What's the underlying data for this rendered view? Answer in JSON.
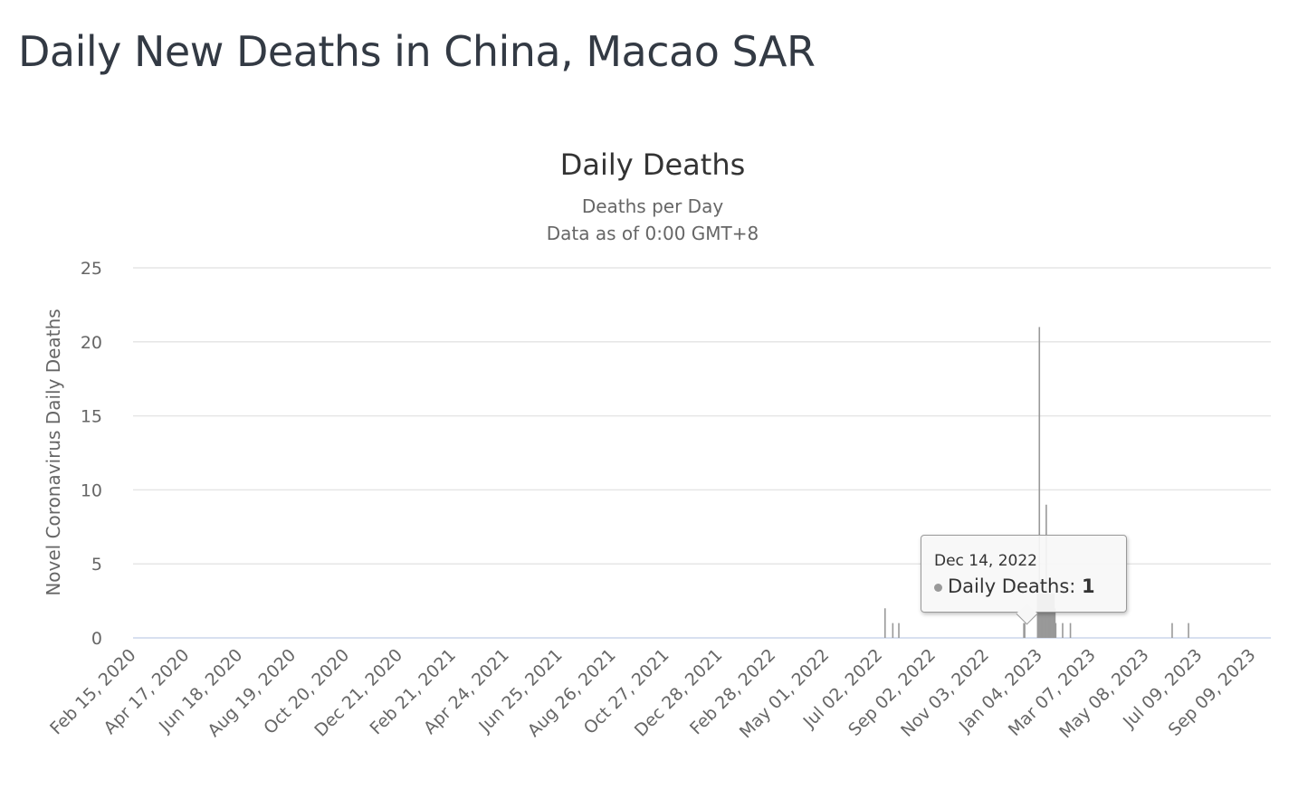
{
  "page_title": "Daily New Deaths in China, Macao SAR",
  "chart_data": {
    "type": "bar",
    "title": "Daily Deaths",
    "subtitle_lines": [
      "Deaths per Day",
      "Data as of 0:00 GMT+8"
    ],
    "xlabel": "",
    "ylabel": "Novel Coronavirus Daily Deaths",
    "ylim": [
      0,
      25
    ],
    "yticks": [
      0,
      5,
      10,
      15,
      20,
      25
    ],
    "x_start": "2020-02-15",
    "x_ticks": [
      "Feb 15, 2020",
      "Apr 17, 2020",
      "Jun 18, 2020",
      "Aug 19, 2020",
      "Oct 20, 2020",
      "Dec 21, 2020",
      "Feb 21, 2021",
      "Apr 24, 2021",
      "Jun 25, 2021",
      "Aug 26, 2021",
      "Oct 27, 2021",
      "Dec 28, 2021",
      "Feb 28, 2022",
      "May 01, 2022",
      "Jul 02, 2022",
      "Sep 02, 2022",
      "Nov 03, 2022",
      "Jan 04, 2023",
      "Mar 07, 2023",
      "May 08, 2023",
      "Jul 09, 2023",
      "Sep 09, 2023"
    ],
    "grid": true,
    "color": "#999999",
    "series": [
      {
        "name": "Daily Deaths",
        "points": [
          [
            "2022-07-06",
            2
          ],
          [
            "2022-07-15",
            1
          ],
          [
            "2022-07-22",
            1
          ],
          [
            "2022-12-14",
            1
          ],
          [
            "2022-12-15",
            1
          ],
          [
            "2022-12-30",
            3
          ],
          [
            "2022-12-31",
            3
          ],
          [
            "2023-01-01",
            21
          ],
          [
            "2023-01-02",
            3
          ],
          [
            "2023-01-03",
            3
          ],
          [
            "2023-01-04",
            3
          ],
          [
            "2023-01-05",
            3
          ],
          [
            "2023-01-06",
            3
          ],
          [
            "2023-01-07",
            3
          ],
          [
            "2023-01-08",
            3
          ],
          [
            "2023-01-09",
            9
          ],
          [
            "2023-01-10",
            3
          ],
          [
            "2023-01-11",
            3
          ],
          [
            "2023-01-12",
            3
          ],
          [
            "2023-01-13",
            3
          ],
          [
            "2023-01-14",
            3
          ],
          [
            "2023-01-15",
            3
          ],
          [
            "2023-01-16",
            3
          ],
          [
            "2023-01-17",
            3
          ],
          [
            "2023-01-18",
            3
          ],
          [
            "2023-01-19",
            2
          ],
          [
            "2023-01-20",
            1
          ],
          [
            "2023-01-28",
            1
          ],
          [
            "2023-02-06",
            1
          ],
          [
            "2023-06-04",
            1
          ],
          [
            "2023-06-23",
            1
          ]
        ]
      }
    ],
    "tooltip": {
      "date": "Dec 14, 2022",
      "label": "Daily Deaths:",
      "value": "1"
    }
  }
}
